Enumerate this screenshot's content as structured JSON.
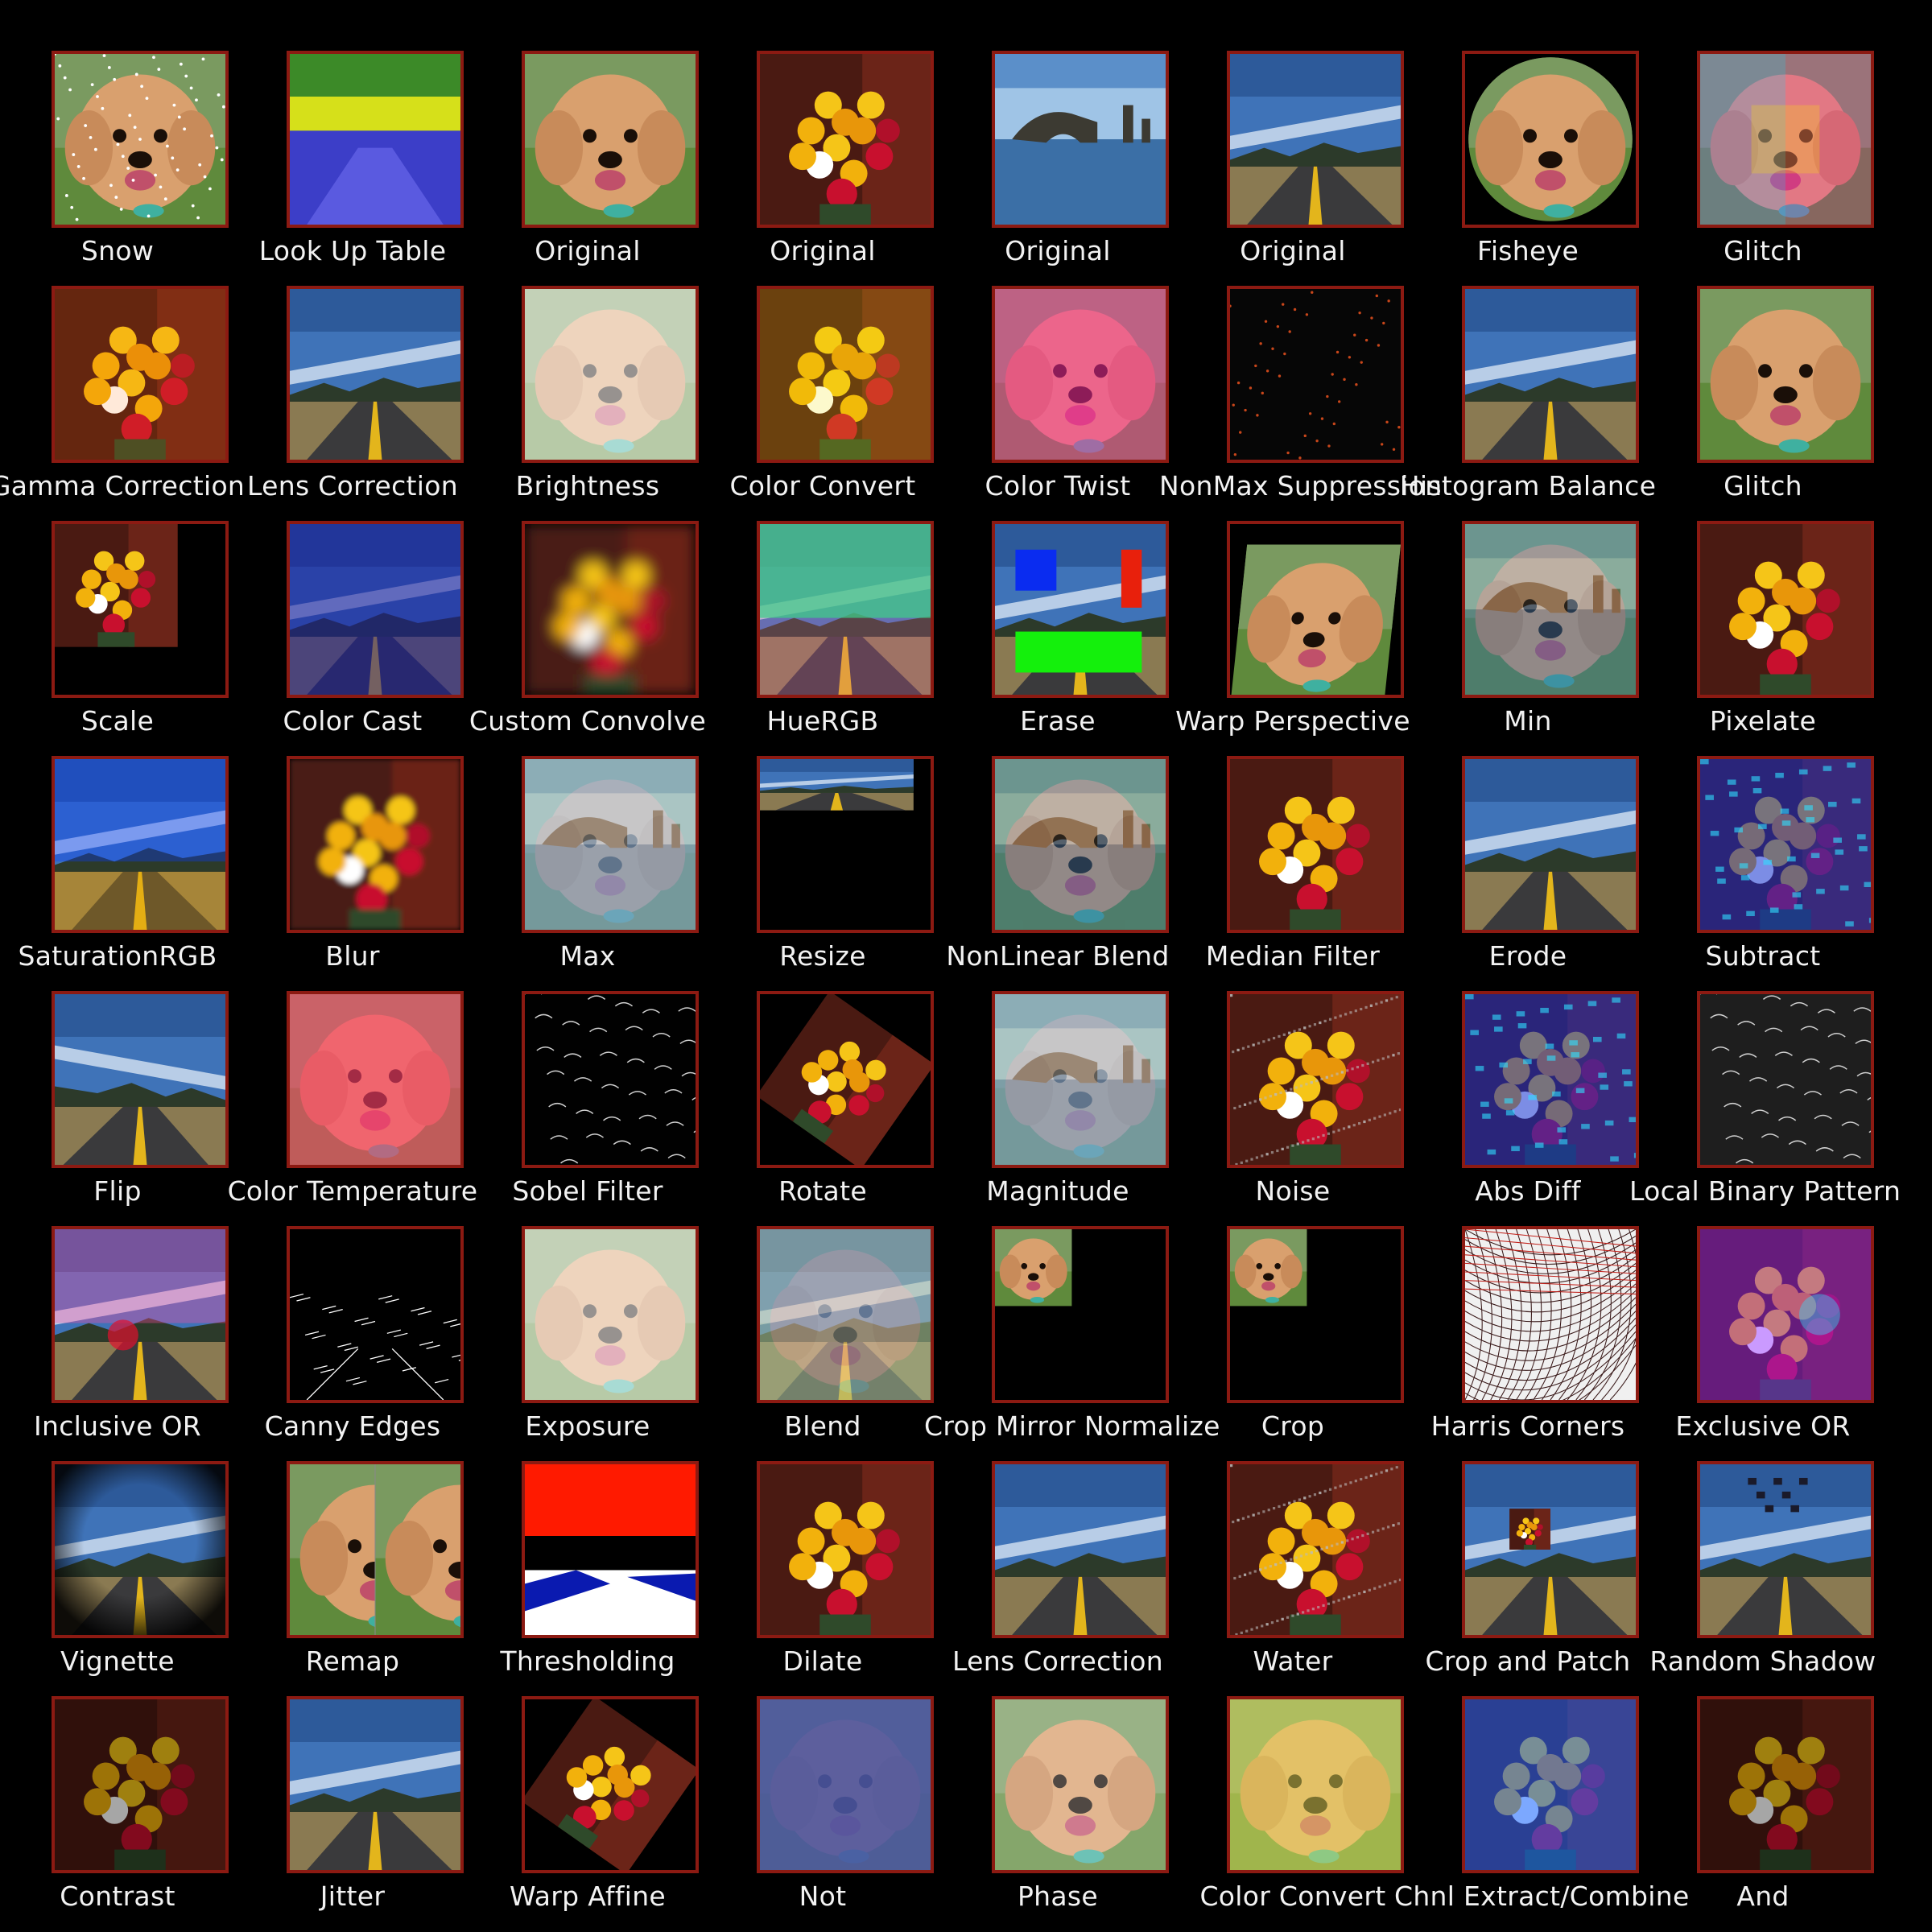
{
  "tiles": [
    {
      "label": "Snow",
      "scene": "dog",
      "effect": "snow"
    },
    {
      "label": "Look Up Table",
      "scene": "road",
      "effect": "lut"
    },
    {
      "label": "Original",
      "scene": "dog",
      "effect": "none"
    },
    {
      "label": "Original",
      "scene": "flowers",
      "effect": "none"
    },
    {
      "label": "Original",
      "scene": "sea",
      "effect": "none"
    },
    {
      "label": "Original",
      "scene": "road",
      "effect": "none"
    },
    {
      "label": "Fisheye",
      "scene": "dog",
      "effect": "fisheye"
    },
    {
      "label": "Glitch",
      "scene": "dog",
      "effect": "rainbow"
    },
    {
      "label": "Gamma Correction",
      "scene": "flowers",
      "effect": "gamma"
    },
    {
      "label": "Lens Correction",
      "scene": "road",
      "effect": "none"
    },
    {
      "label": "Brightness",
      "scene": "dog",
      "effect": "bright"
    },
    {
      "label": "Color Convert",
      "scene": "flowers",
      "effect": "yellow"
    },
    {
      "label": "Color Twist",
      "scene": "dog",
      "effect": "pink"
    },
    {
      "label": "NonMax Suppression",
      "scene": "dark",
      "effect": "dots"
    },
    {
      "label": "Histogram Balance",
      "scene": "road",
      "effect": "none"
    },
    {
      "label": "Glitch",
      "scene": "dog",
      "effect": "none"
    },
    {
      "label": "Scale",
      "scene": "flowers",
      "effect": "scale"
    },
    {
      "label": "Color Cast",
      "scene": "road",
      "effect": "bluecast"
    },
    {
      "label": "Custom Convolve",
      "scene": "flowers",
      "effect": "blur"
    },
    {
      "label": "HueRGB",
      "scene": "road",
      "effect": "teal"
    },
    {
      "label": "Erase",
      "scene": "road",
      "effect": "erase"
    },
    {
      "label": "Warp Perspective",
      "scene": "dog",
      "effect": "warp"
    },
    {
      "label": "Min",
      "scene": "sea",
      "effect": "ghostdog"
    },
    {
      "label": "Pixelate",
      "scene": "flowers",
      "effect": "pixel"
    },
    {
      "label": "SaturationRGB",
      "scene": "road",
      "effect": "saturate"
    },
    {
      "label": "Blur",
      "scene": "flowers",
      "effect": "softblur"
    },
    {
      "label": "Max",
      "scene": "sea",
      "effect": "light"
    },
    {
      "label": "Resize",
      "scene": "road",
      "effect": "resize"
    },
    {
      "label": "NonLinear Blend",
      "scene": "sea",
      "effect": "ghostdog"
    },
    {
      "label": "Median Filter",
      "scene": "flowers",
      "effect": "none"
    },
    {
      "label": "Erode",
      "scene": "road",
      "effect": "none"
    },
    {
      "label": "Subtract",
      "scene": "flowers",
      "effect": "bluenoise"
    },
    {
      "label": "Flip",
      "scene": "road",
      "effect": "flip"
    },
    {
      "label": "Color Temperature",
      "scene": "dog",
      "effect": "pinkred"
    },
    {
      "label": "Sobel Filter",
      "scene": "dark",
      "effect": "edges"
    },
    {
      "label": "Rotate",
      "scene": "flowers",
      "effect": "rotate"
    },
    {
      "label": "Magnitude",
      "scene": "sea",
      "effect": "light"
    },
    {
      "label": "Noise",
      "scene": "flowers",
      "effect": "noise"
    },
    {
      "label": "Abs Diff",
      "scene": "flowers",
      "effect": "bluenoise"
    },
    {
      "label": "Local Binary Pattern",
      "scene": "gray",
      "effect": "edges"
    },
    {
      "label": "Inclusive OR",
      "scene": "road",
      "effect": "pinkover"
    },
    {
      "label": "Canny Edges",
      "scene": "dark",
      "effect": "canny"
    },
    {
      "label": "Exposure",
      "scene": "dog",
      "effect": "bright"
    },
    {
      "label": "Blend",
      "scene": "road",
      "effect": "light"
    },
    {
      "label": "Crop Mirror Normalize",
      "scene": "black",
      "effect": "smalldog"
    },
    {
      "label": "Crop",
      "scene": "black",
      "effect": "smalldog"
    },
    {
      "label": "Harris Corners",
      "scene": "white",
      "effect": "lines"
    },
    {
      "label": "Exclusive OR",
      "scene": "flowers",
      "effect": "purple"
    },
    {
      "label": "Vignette",
      "scene": "road",
      "effect": "vignette"
    },
    {
      "label": "Remap",
      "scene": "dog",
      "effect": "split"
    },
    {
      "label": "Thresholding",
      "scene": "thresh",
      "effect": "none"
    },
    {
      "label": "Dilate",
      "scene": "flowers",
      "effect": "none"
    },
    {
      "label": "Lens Correction",
      "scene": "road",
      "effect": "none"
    },
    {
      "label": "Water",
      "scene": "flowers",
      "effect": "noise"
    },
    {
      "label": "Crop and Patch",
      "scene": "road",
      "effect": "patch"
    },
    {
      "label": "Random Shadow",
      "scene": "road",
      "effect": "shadow"
    },
    {
      "label": "Contrast",
      "scene": "flowers",
      "effect": "dim"
    },
    {
      "label": "Jitter",
      "scene": "road",
      "effect": "none"
    },
    {
      "label": "Warp Affine",
      "scene": "flowers",
      "effect": "rotate"
    },
    {
      "label": "Not",
      "scene": "dog",
      "effect": "invert"
    },
    {
      "label": "Phase",
      "scene": "dog",
      "effect": "light"
    },
    {
      "label": "Color Convert",
      "scene": "dog",
      "effect": "yellowdog"
    },
    {
      "label": "Chnl Extract/Combine",
      "scene": "flowers",
      "effect": "blueflower"
    },
    {
      "label": "And",
      "scene": "flowers",
      "effect": "dim"
    }
  ]
}
